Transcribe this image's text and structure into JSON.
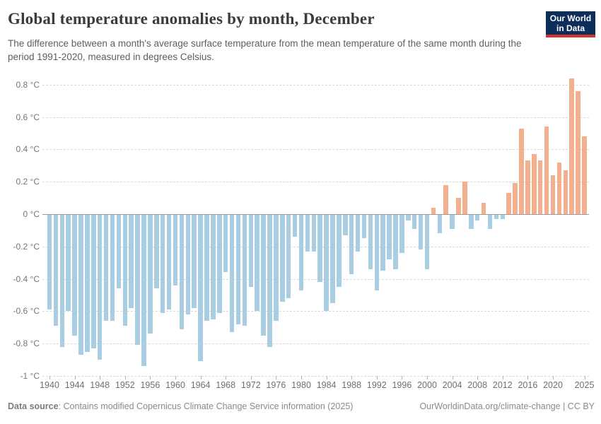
{
  "header": {
    "title": "Global temperature anomalies by month, December",
    "subtitle": "The difference between a month's average surface temperature from the mean temperature of the same month during the period 1991-2020, measured in degrees Celsius.",
    "logo_line1": "Our World",
    "logo_line2": "in Data"
  },
  "footer": {
    "source_label": "Data source",
    "source_text": ": Contains modified Copernicus Climate Change Service information (2025)",
    "link_text": "OurWorldinData.org/climate-change | CC BY"
  },
  "colors": {
    "positive_bar": "#f3b08f",
    "negative_bar": "#a9cee4",
    "zero_line": "#9a9a9a",
    "gridline": "#d9d9d9",
    "logo_navy": "#0e2e5a",
    "logo_red": "#d0342c"
  },
  "chart_data": {
    "type": "bar",
    "title": "Global temperature anomalies by month, December",
    "xlabel": "",
    "ylabel": "",
    "unit": "°C",
    "ylim": [
      -1,
      0.9
    ],
    "xlim": [
      1939,
      2026
    ],
    "grid": "dashed horizontal",
    "legend": "none",
    "x": [
      1940,
      1941,
      1942,
      1943,
      1944,
      1945,
      1946,
      1947,
      1948,
      1949,
      1950,
      1951,
      1952,
      1953,
      1954,
      1955,
      1956,
      1957,
      1958,
      1959,
      1960,
      1961,
      1962,
      1963,
      1964,
      1965,
      1966,
      1967,
      1968,
      1969,
      1970,
      1971,
      1972,
      1973,
      1974,
      1975,
      1976,
      1977,
      1978,
      1979,
      1980,
      1981,
      1982,
      1983,
      1984,
      1985,
      1986,
      1987,
      1988,
      1989,
      1990,
      1991,
      1992,
      1993,
      1994,
      1995,
      1996,
      1997,
      1998,
      1999,
      2000,
      2001,
      2002,
      2003,
      2004,
      2005,
      2006,
      2007,
      2008,
      2009,
      2010,
      2011,
      2012,
      2013,
      2014,
      2015,
      2016,
      2017,
      2018,
      2019,
      2020,
      2021,
      2022,
      2023,
      2024,
      2025
    ],
    "values": [
      -0.59,
      -0.69,
      -0.82,
      -0.6,
      -0.75,
      -0.87,
      -0.85,
      -0.83,
      -0.9,
      -0.66,
      -0.66,
      -0.46,
      -0.69,
      -0.58,
      -0.81,
      -0.94,
      -0.74,
      -0.46,
      -0.61,
      -0.59,
      -0.44,
      -0.71,
      -0.62,
      -0.58,
      -0.91,
      -0.66,
      -0.65,
      -0.61,
      -0.36,
      -0.73,
      -0.68,
      -0.69,
      -0.45,
      -0.6,
      -0.75,
      -0.82,
      -0.66,
      -0.54,
      -0.52,
      -0.14,
      -0.47,
      -0.23,
      -0.23,
      -0.42,
      -0.6,
      -0.55,
      -0.45,
      -0.13,
      -0.37,
      -0.23,
      -0.15,
      -0.34,
      -0.47,
      -0.35,
      -0.28,
      -0.34,
      -0.24,
      -0.04,
      -0.09,
      -0.22,
      -0.34,
      0.04,
      -0.12,
      0.18,
      -0.09,
      0.1,
      0.2,
      -0.09,
      -0.04,
      0.07,
      -0.09,
      -0.03,
      -0.03,
      0.13,
      0.19,
      0.53,
      0.33,
      0.37,
      0.33,
      0.54,
      0.24,
      0.32,
      0.27,
      0.84,
      0.76,
      0.48
    ],
    "y_ticks": [
      {
        "value": 0.8,
        "label": "0.8 °C"
      },
      {
        "value": 0.6,
        "label": "0.6 °C"
      },
      {
        "value": 0.4,
        "label": "0.4 °C"
      },
      {
        "value": 0.2,
        "label": "0.2 °C"
      },
      {
        "value": 0,
        "label": "0 °C"
      },
      {
        "value": -0.2,
        "label": "-0.2 °C"
      },
      {
        "value": -0.4,
        "label": "-0.4 °C"
      },
      {
        "value": -0.6,
        "label": "-0.6 °C"
      },
      {
        "value": -0.8,
        "label": "-0.8 °C"
      },
      {
        "value": -1,
        "label": "-1 °C"
      }
    ],
    "x_ticks": [
      1940,
      1944,
      1948,
      1952,
      1956,
      1960,
      1964,
      1968,
      1972,
      1976,
      1980,
      1984,
      1988,
      1992,
      1996,
      2000,
      2004,
      2008,
      2012,
      2016,
      2020,
      2025
    ]
  }
}
